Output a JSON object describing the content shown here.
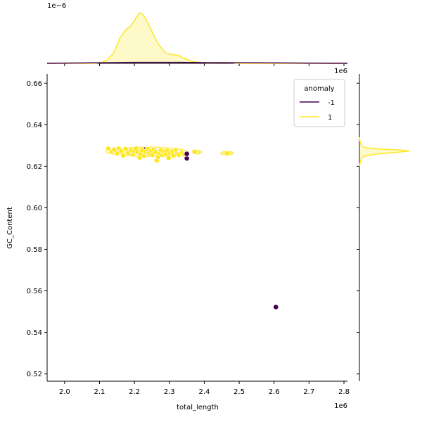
{
  "chart_data": {
    "type": "scatter",
    "title": "",
    "xlabel": "total_length",
    "ylabel": "GC_Content",
    "xlim": [
      1950000,
      2810000
    ],
    "ylim": [
      0.5165,
      0.6645
    ],
    "x_ticks": [
      2000000,
      2100000,
      2200000,
      2300000,
      2400000,
      2500000,
      2600000,
      2700000,
      2800000
    ],
    "x_tick_labels": [
      "2.0",
      "2.1",
      "2.2",
      "2.3",
      "2.4",
      "2.5",
      "2.6",
      "2.7",
      "2.8"
    ],
    "x_offset_label": "1e6",
    "y_ticks": [
      0.52,
      0.54,
      0.56,
      0.58,
      0.6,
      0.62,
      0.64,
      0.66
    ],
    "y_tick_labels": [
      "0.52",
      "0.54",
      "0.56",
      "0.58",
      "0.60",
      "0.62",
      "0.64",
      "0.66"
    ],
    "top_marginal_offset_label": "1e−6",
    "right_marginal_offset_label": "1e6",
    "grid": false,
    "legend": {
      "title": "anomaly",
      "placement": "top-right",
      "entries": [
        {
          "label": "-1",
          "color": "#440154"
        },
        {
          "label": "1",
          "color": "#fde725"
        }
      ]
    },
    "series": [
      {
        "name": "-1",
        "color": "#440154",
        "points": [
          [
            2605000,
            0.5522
          ],
          [
            2350000,
            0.6238
          ],
          [
            2350000,
            0.626
          ],
          [
            2230000,
            0.628
          ],
          [
            2185000,
            0.6265
          ],
          [
            2270000,
            0.625
          ]
        ]
      },
      {
        "name": "1",
        "color": "#fde725",
        "points": [
          [
            2125000,
            0.6285
          ],
          [
            2135000,
            0.627
          ],
          [
            2142000,
            0.628
          ],
          [
            2150000,
            0.6262
          ],
          [
            2155000,
            0.6285
          ],
          [
            2162000,
            0.6272
          ],
          [
            2168000,
            0.6252
          ],
          [
            2175000,
            0.6283
          ],
          [
            2182000,
            0.6265
          ],
          [
            2190000,
            0.6278
          ],
          [
            2196000,
            0.6258
          ],
          [
            2200000,
            0.6272
          ],
          [
            2205000,
            0.6285
          ],
          [
            2210000,
            0.6268
          ],
          [
            2215000,
            0.6242
          ],
          [
            2218000,
            0.626
          ],
          [
            2222000,
            0.6278
          ],
          [
            2228000,
            0.625
          ],
          [
            2232000,
            0.627
          ],
          [
            2238000,
            0.6283
          ],
          [
            2242000,
            0.6262
          ],
          [
            2248000,
            0.6275
          ],
          [
            2252000,
            0.6255
          ],
          [
            2256000,
            0.628
          ],
          [
            2260000,
            0.6268
          ],
          [
            2264000,
            0.6228
          ],
          [
            2268000,
            0.6245
          ],
          [
            2272000,
            0.6262
          ],
          [
            2276000,
            0.6278
          ],
          [
            2280000,
            0.6255
          ],
          [
            2285000,
            0.627
          ],
          [
            2290000,
            0.6258
          ],
          [
            2294000,
            0.6275
          ],
          [
            2298000,
            0.624
          ],
          [
            2302000,
            0.6262
          ],
          [
            2308000,
            0.627
          ],
          [
            2312000,
            0.6252
          ],
          [
            2318000,
            0.6278
          ],
          [
            2322000,
            0.626
          ],
          [
            2328000,
            0.6255
          ],
          [
            2335000,
            0.6265
          ],
          [
            2342000,
            0.6258
          ],
          [
            2372000,
            0.627
          ],
          [
            2465000,
            0.6262
          ]
        ]
      }
    ],
    "kde_contours": [
      {
        "name": "1",
        "color": "#fde725",
        "cx": 2235000,
        "cy": 0.627,
        "rx": 115000,
        "ry": 0.0022
      },
      {
        "name": "1",
        "color": "#fde725",
        "cx": 2380000,
        "cy": 0.6268,
        "rx": 12000,
        "ry": 0.0008
      },
      {
        "name": "1",
        "color": "#fde725",
        "cx": 2465000,
        "cy": 0.6263,
        "rx": 18000,
        "ry": 0.0008
      }
    ],
    "marginal_x": {
      "series": [
        {
          "name": "1",
          "color": "#fde725",
          "x": [
            1950000,
            2080000,
            2100000,
            2120000,
            2140000,
            2160000,
            2175000,
            2190000,
            2205000,
            2215000,
            2225000,
            2240000,
            2255000,
            2270000,
            2290000,
            2310000,
            2325000,
            2345000,
            2370000,
            2400000,
            2430000,
            2460000,
            2480000,
            2500000,
            2810000
          ],
          "density": [
            0,
            0,
            0.01,
            0.05,
            0.2,
            0.52,
            0.66,
            0.74,
            0.9,
            1.0,
            0.96,
            0.78,
            0.56,
            0.36,
            0.2,
            0.17,
            0.16,
            0.09,
            0.03,
            0.01,
            0.01,
            0.015,
            0.01,
            0,
            0
          ]
        },
        {
          "name": "-1",
          "color": "#440154",
          "x": [
            1950000,
            2100000,
            2200000,
            2300000,
            2400000,
            2500000,
            2600000,
            2700000,
            2810000
          ],
          "density": [
            0,
            0.01,
            0.02,
            0.02,
            0.015,
            0.01,
            0.008,
            0.004,
            0
          ]
        }
      ]
    },
    "marginal_y": {
      "series": [
        {
          "name": "1",
          "color": "#fde725",
          "y": [
            0.62,
            0.6225,
            0.624,
            0.625,
            0.626,
            0.6268,
            0.6273,
            0.6278,
            0.6283,
            0.629,
            0.63,
            0.632,
            0.634
          ],
          "density": [
            0,
            0.02,
            0.05,
            0.12,
            0.38,
            0.8,
            1.0,
            0.85,
            0.4,
            0.12,
            0.04,
            0.01,
            0
          ]
        }
      ]
    }
  }
}
